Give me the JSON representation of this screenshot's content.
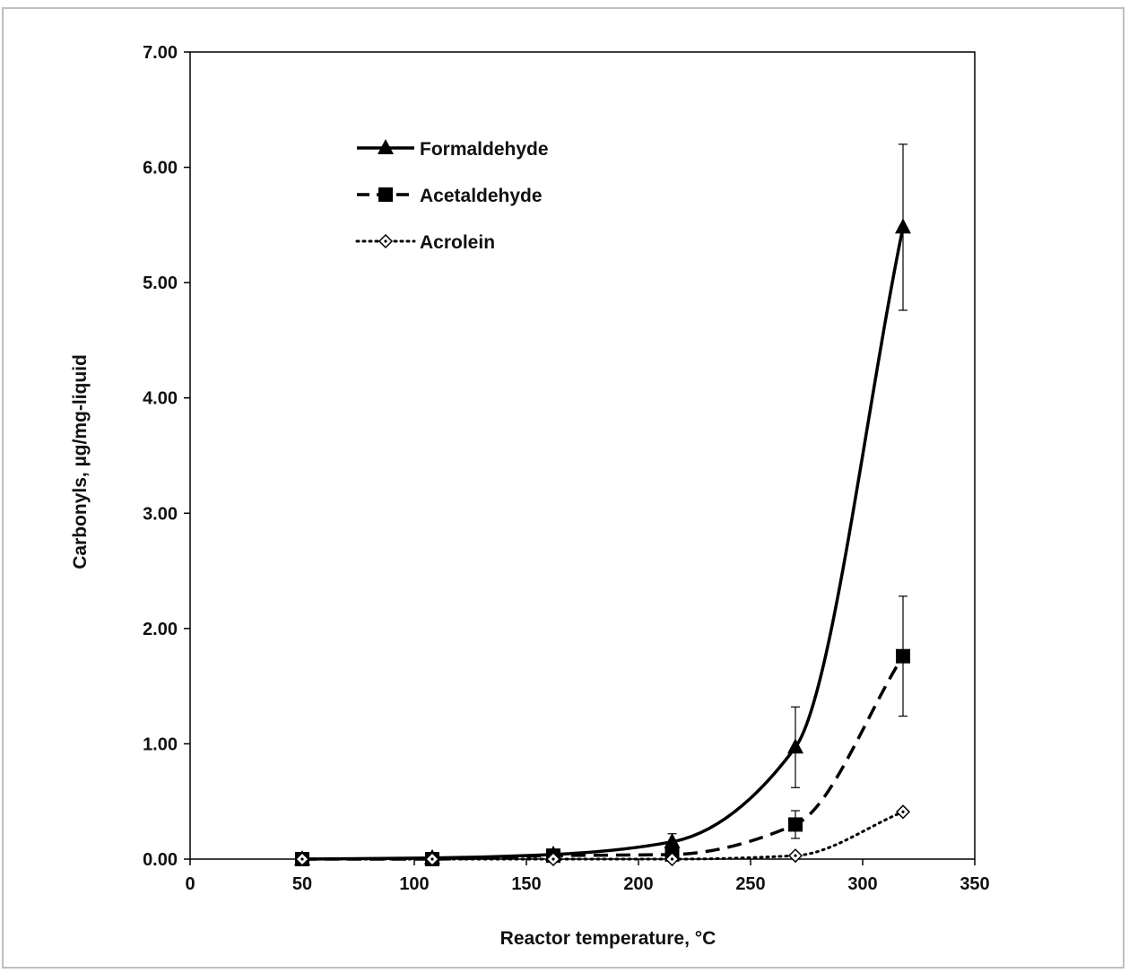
{
  "chart_data": {
    "type": "line",
    "title": "",
    "xlabel": "Reactor temperature, °C",
    "ylabel": "Carbonyls, µg/mg-liquid",
    "xlim": [
      0,
      350
    ],
    "ylim": [
      0,
      7
    ],
    "x_ticks": [
      "0",
      "50",
      "100",
      "150",
      "200",
      "250",
      "300",
      "350"
    ],
    "x_tick_values": [
      0,
      50,
      100,
      150,
      200,
      250,
      300,
      350
    ],
    "y_ticks": [
      "0.00",
      "1.00",
      "2.00",
      "3.00",
      "4.00",
      "5.00",
      "6.00",
      "7.00"
    ],
    "y_tick_values": [
      0,
      1,
      2,
      3,
      4,
      5,
      6,
      7
    ],
    "grid": false,
    "legend_position": "top-left",
    "series": [
      {
        "name": "Formaldehyde",
        "marker": "triangle",
        "line": "solid",
        "x": [
          50,
          108,
          162,
          215,
          270,
          318
        ],
        "values": [
          0.0,
          0.01,
          0.04,
          0.15,
          0.97,
          5.48
        ],
        "error": [
          0,
          0,
          0,
          0.07,
          0.35,
          0.72
        ]
      },
      {
        "name": "Acetaldehyde",
        "marker": "square",
        "line": "dashed",
        "x": [
          50,
          108,
          162,
          215,
          270,
          318
        ],
        "values": [
          0.0,
          0.0,
          0.03,
          0.04,
          0.3,
          1.76
        ],
        "error": [
          0,
          0,
          0,
          0,
          0.12,
          0.52
        ]
      },
      {
        "name": "Acrolein",
        "marker": "diamond-open",
        "line": "dotted",
        "x": [
          50,
          108,
          162,
          215,
          270,
          318
        ],
        "values": [
          0.0,
          0.0,
          0.0,
          0.0,
          0.03,
          0.41
        ],
        "error": [
          0,
          0,
          0,
          0,
          0,
          0
        ]
      }
    ]
  }
}
